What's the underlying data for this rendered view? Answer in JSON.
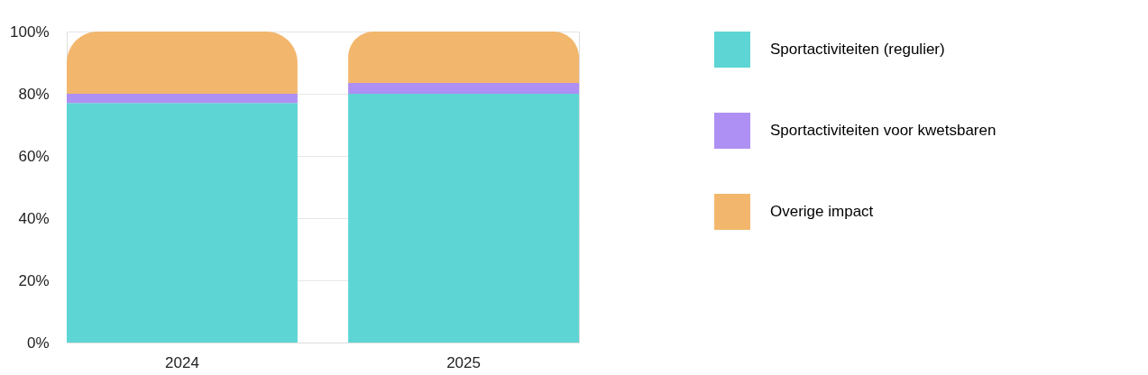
{
  "chart_data": {
    "type": "bar",
    "stacked": true,
    "categories": [
      "2024",
      "2025"
    ],
    "series": [
      {
        "name": "Sportactiviteiten (regulier)",
        "color": "#5dd5d4",
        "values": [
          77,
          80
        ]
      },
      {
        "name": "Sportactiviteiten voor kwetsbaren",
        "color": "#ae8ff3",
        "values": [
          3,
          3.5
        ]
      },
      {
        "name": "Overige impact",
        "color": "#f2b76d",
        "values": [
          20,
          16.5
        ]
      }
    ],
    "ylim": [
      0,
      100
    ],
    "yticks": [
      {
        "value": 0,
        "label": "0%"
      },
      {
        "value": 20,
        "label": "20%"
      },
      {
        "value": 40,
        "label": "40%"
      },
      {
        "value": 60,
        "label": "60%"
      },
      {
        "value": 80,
        "label": "80%"
      },
      {
        "value": 100,
        "label": "100%"
      }
    ],
    "grid": "y",
    "legend": "right"
  }
}
